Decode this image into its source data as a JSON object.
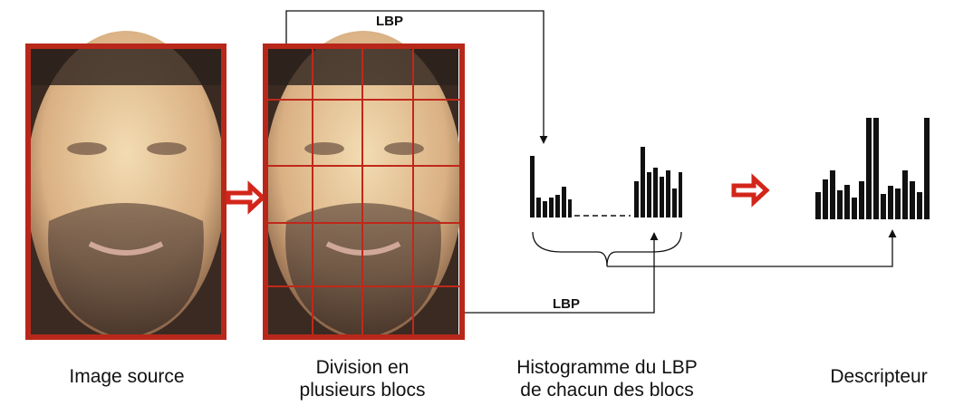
{
  "diagram": {
    "lbp_top": "LBP",
    "lbp_bottom": "LBP",
    "captions": [
      {
        "lines": [
          "Image source"
        ]
      },
      {
        "lines": [
          "Division en",
          "plusieurs blocs"
        ]
      },
      {
        "lines": [
          "Histogramme du LBP",
          "de chacun des blocs"
        ]
      },
      {
        "lines": [
          "Descripteur"
        ]
      }
    ]
  }
}
